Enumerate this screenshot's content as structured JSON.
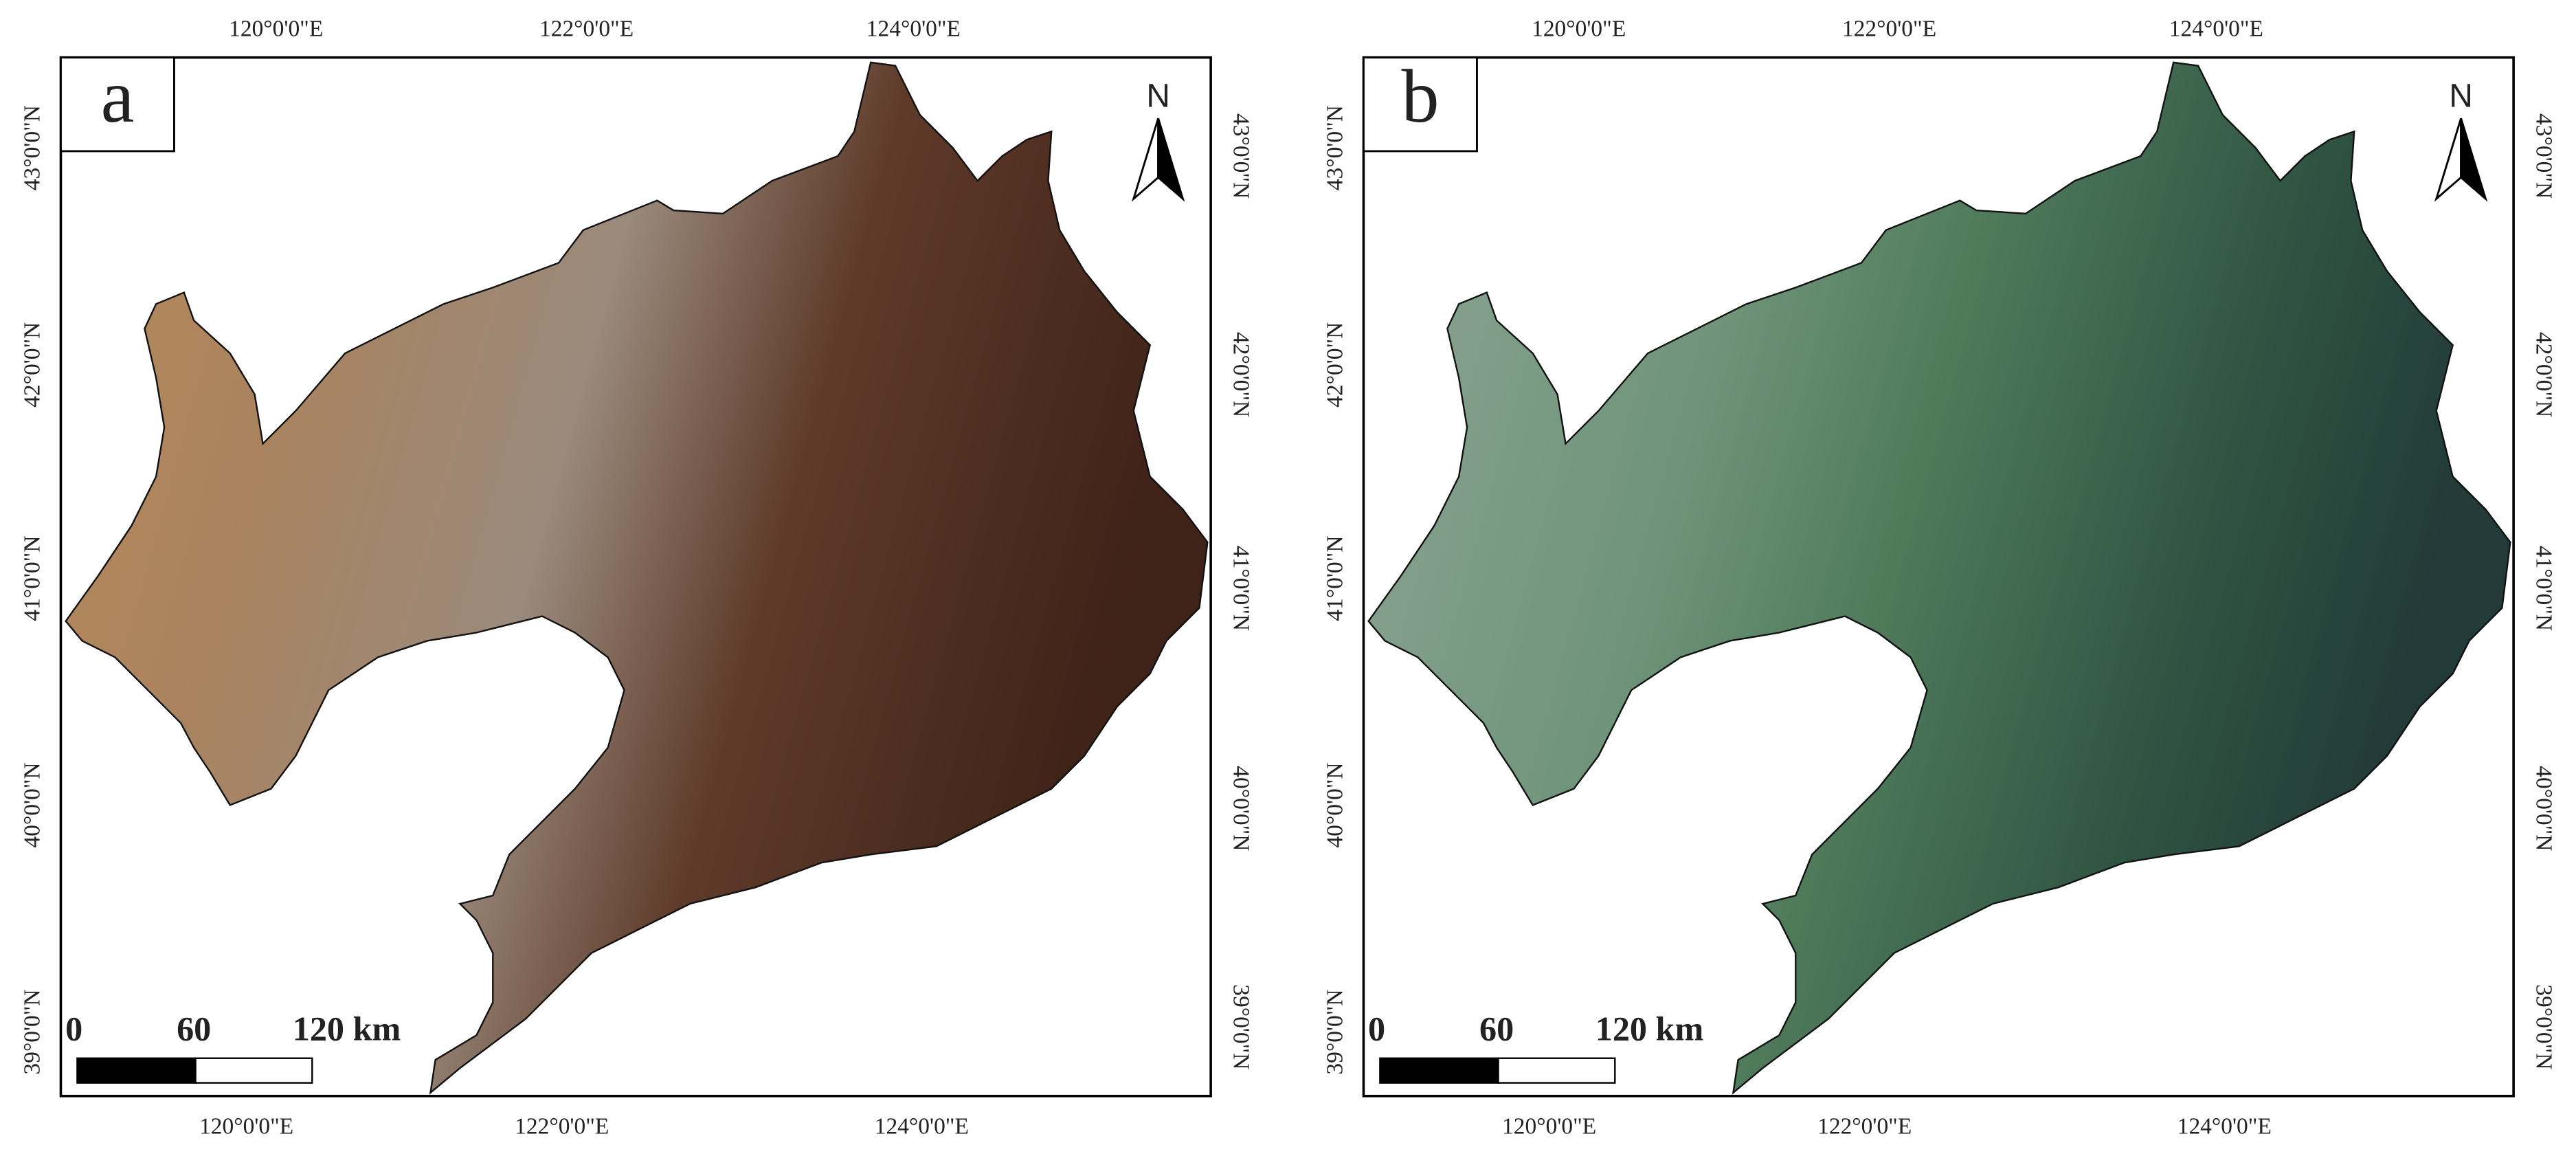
{
  "panels": [
    {
      "label": "a",
      "top_labels": [
        "120°0'0\"E",
        "122°0'0\"E",
        "124°0'0\"E"
      ],
      "bottom_labels": [
        "120°0'0\"E",
        "122°0'0\"E",
        "124°0'0\"E"
      ],
      "left_labels": [
        "43°0'0\"N",
        "42°0'0\"N",
        "41°0'0\"N",
        "40°0'0\"N",
        "39°0'0\"N"
      ],
      "right_labels": [
        "43°0'0\"N",
        "42°0'0\"N",
        "41°0'0\"N",
        "40°0'0\"N",
        "39°0'0\"N"
      ],
      "north": "N",
      "scale_labels": [
        "0",
        "60",
        "120 km"
      ]
    },
    {
      "label": "b",
      "top_labels": [
        "120°0'0\"E",
        "122°0'0\"E",
        "124°0'0\"E"
      ],
      "bottom_labels": [
        "120°0'0\"E",
        "122°0'0\"E",
        "124°0'0\"E"
      ],
      "left_labels": [
        "43°0'0\"N",
        "42°0'0\"N",
        "41°0'0\"N",
        "40°0'0\"N",
        "39°0'0\"N"
      ],
      "right_labels": [
        "43°0'0\"N",
        "42°0'0\"N",
        "41°0'0\"N",
        "40°0'0\"N",
        "39°0'0\"N"
      ],
      "north": "N",
      "scale_labels": [
        "0",
        "60",
        "120 km"
      ]
    }
  ]
}
